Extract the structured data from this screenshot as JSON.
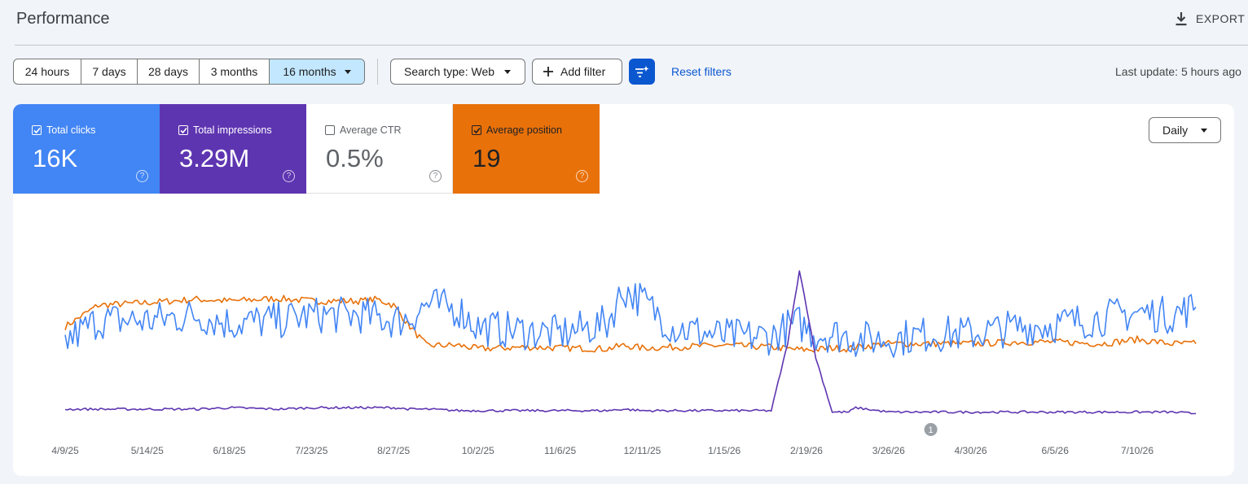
{
  "header": {
    "title": "Performance",
    "export_label": "EXPORT"
  },
  "toolbar": {
    "ranges": [
      "24 hours",
      "7 days",
      "28 days",
      "3 months",
      "16 months"
    ],
    "active_range": "16 months",
    "search_type": "Search type: Web",
    "add_filter": "Add filter",
    "reset_filters": "Reset filters",
    "last_update": "Last update: 5 hours ago"
  },
  "metrics": {
    "clicks": {
      "label": "Total clicks",
      "value": "16K",
      "checked": true,
      "color": "#4285f4"
    },
    "impressions": {
      "label": "Total impressions",
      "value": "3.29M",
      "checked": true,
      "color": "#5e35b1"
    },
    "ctr": {
      "label": "Average CTR",
      "value": "0.5%",
      "checked": false
    },
    "position": {
      "label": "Average position",
      "value": "19",
      "checked": true,
      "color": "#e8710a"
    }
  },
  "granularity": "Daily",
  "annotation": {
    "label": "1",
    "x": "4/13/26"
  },
  "chart_data": {
    "type": "line",
    "x": [
      "4/9/25",
      "4/23/25",
      "5/14/25",
      "6/4/25",
      "6/18/25",
      "7/9/25",
      "7/23/25",
      "8/13/25",
      "8/20/25",
      "8/27/25",
      "9/3/25",
      "9/10/25",
      "9/24/25",
      "10/2/25",
      "10/22/25",
      "11/6/25",
      "11/26/25",
      "12/3/25",
      "12/11/25",
      "12/24/25",
      "1/15/26",
      "2/4/26",
      "2/11/26",
      "2/16/26",
      "2/19/26",
      "2/23/26",
      "3/2/26",
      "3/9/26",
      "3/12/26",
      "3/26/26",
      "4/13/26",
      "4/30/26",
      "5/20/26",
      "6/5/26",
      "6/25/26",
      "7/10/26",
      "7/24/26",
      "8/4/26"
    ],
    "x_ticks": [
      "4/9/25",
      "5/14/25",
      "6/18/25",
      "7/23/25",
      "8/27/25",
      "10/2/25",
      "11/6/25",
      "12/11/25",
      "1/15/26",
      "2/19/26",
      "3/26/26",
      "4/30/26",
      "6/5/26",
      "7/10/26"
    ],
    "series": [
      {
        "key": "clicks",
        "color": "#4285f4",
        "values": [
          44,
          60,
          60,
          64,
          58,
          60,
          64,
          64,
          62,
          60,
          62,
          72,
          68,
          55,
          52,
          50,
          58,
          83,
          75,
          55,
          48,
          48,
          55,
          58,
          54,
          50,
          50,
          48,
          46,
          46,
          50,
          50,
          55,
          57,
          62,
          66,
          64,
          70
        ]
      },
      {
        "key": "impressions",
        "color": "#5e35b1",
        "values": [
          5,
          5,
          5,
          5,
          6,
          5,
          6,
          6,
          6,
          6,
          5,
          5,
          4,
          4,
          4,
          4,
          4,
          5,
          4,
          4,
          4,
          4,
          50,
          100,
          75,
          40,
          3,
          3,
          6,
          3,
          3,
          3,
          3,
          3,
          3,
          3,
          3,
          2
        ]
      },
      {
        "key": "position",
        "color": "#e8710a",
        "values": [
          30,
          55,
          58,
          62,
          60,
          63,
          60,
          60,
          62,
          55,
          30,
          8,
          8,
          4,
          6,
          5,
          4,
          8,
          5,
          6,
          8,
          6,
          4,
          3,
          3,
          3,
          5,
          4,
          6,
          10,
          10,
          10,
          12,
          12,
          10,
          15,
          10,
          10
        ]
      }
    ]
  }
}
